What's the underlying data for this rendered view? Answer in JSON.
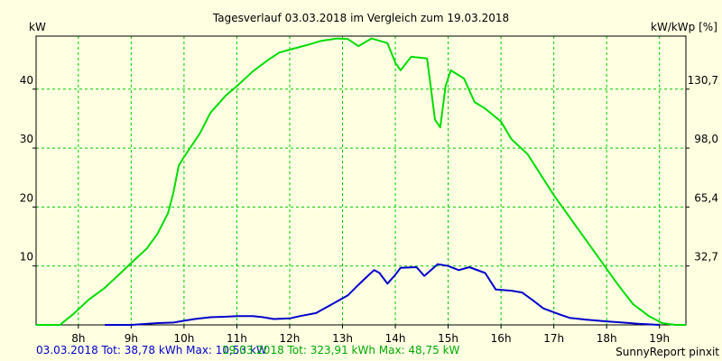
{
  "chart_data": {
    "type": "line",
    "title": "Tagesverlauf 03.03.2018 im Vergleich zum 19.03.2018",
    "ylabel_left": "kW",
    "ylabel_right": "kW/kWp [%]",
    "ylim": [
      0,
      49
    ],
    "xlim": [
      7.2,
      19.5
    ],
    "x_ticks": [
      8,
      9,
      10,
      11,
      12,
      13,
      14,
      15,
      16,
      17,
      18,
      19
    ],
    "x_tick_labels": [
      "8h",
      "9h",
      "10h",
      "11h",
      "12h",
      "13h",
      "14h",
      "15h",
      "16h",
      "17h",
      "18h",
      "19h"
    ],
    "y_ticks_left": [
      10,
      20,
      30,
      40
    ],
    "y_tick_labels_left": [
      "10",
      "20",
      "30",
      "40"
    ],
    "y_ticks_right": [
      10,
      20,
      30,
      40
    ],
    "y_tick_labels_right": [
      "32,7",
      "65,4",
      "98,0",
      "130,7"
    ],
    "grid": true,
    "series": [
      {
        "name": "03.03.2018",
        "color": "#0000cc",
        "points": [
          [
            8.5,
            0
          ],
          [
            9.0,
            0
          ],
          [
            9.5,
            0.3
          ],
          [
            9.8,
            0.4
          ],
          [
            10.0,
            0.7
          ],
          [
            10.2,
            1.0
          ],
          [
            10.5,
            1.3
          ],
          [
            10.8,
            1.4
          ],
          [
            11.0,
            1.5
          ],
          [
            11.3,
            1.5
          ],
          [
            11.5,
            1.3
          ],
          [
            11.7,
            1.0
          ],
          [
            12.0,
            1.1
          ],
          [
            12.2,
            1.5
          ],
          [
            12.5,
            2.0
          ],
          [
            12.8,
            3.5
          ],
          [
            13.1,
            5.0
          ],
          [
            13.3,
            6.8
          ],
          [
            13.5,
            8.5
          ],
          [
            13.6,
            9.3
          ],
          [
            13.7,
            8.8
          ],
          [
            13.85,
            7.0
          ],
          [
            14.0,
            8.5
          ],
          [
            14.1,
            9.7
          ],
          [
            14.4,
            9.8
          ],
          [
            14.55,
            8.3
          ],
          [
            14.8,
            10.3
          ],
          [
            15.0,
            10.0
          ],
          [
            15.2,
            9.3
          ],
          [
            15.4,
            9.8
          ],
          [
            15.7,
            8.8
          ],
          [
            15.9,
            6.0
          ],
          [
            16.2,
            5.8
          ],
          [
            16.4,
            5.5
          ],
          [
            16.6,
            4.2
          ],
          [
            16.8,
            2.8
          ],
          [
            17.1,
            1.8
          ],
          [
            17.3,
            1.2
          ],
          [
            17.6,
            0.9
          ],
          [
            18.0,
            0.6
          ],
          [
            18.3,
            0.4
          ],
          [
            18.6,
            0.2
          ],
          [
            19.0,
            0
          ]
        ]
      },
      {
        "name": "19.03.2018",
        "color": "#00dd00",
        "points": [
          [
            7.2,
            0
          ],
          [
            7.65,
            0
          ],
          [
            7.9,
            1.8
          ],
          [
            8.2,
            4.3
          ],
          [
            8.5,
            6.3
          ],
          [
            8.8,
            8.8
          ],
          [
            9.0,
            10.5
          ],
          [
            9.3,
            13.0
          ],
          [
            9.5,
            15.5
          ],
          [
            9.7,
            19.0
          ],
          [
            9.8,
            22.5
          ],
          [
            9.9,
            27.0
          ],
          [
            10.0,
            28.5
          ],
          [
            10.3,
            32.5
          ],
          [
            10.5,
            36.0
          ],
          [
            10.8,
            39.0
          ],
          [
            11.0,
            40.5
          ],
          [
            11.3,
            43.0
          ],
          [
            11.6,
            45.0
          ],
          [
            11.8,
            46.2
          ],
          [
            12.0,
            46.7
          ],
          [
            12.3,
            47.4
          ],
          [
            12.6,
            48.2
          ],
          [
            12.9,
            48.6
          ],
          [
            13.1,
            48.5
          ],
          [
            13.3,
            47.3
          ],
          [
            13.55,
            48.6
          ],
          [
            13.7,
            48.2
          ],
          [
            13.85,
            47.8
          ],
          [
            14.0,
            44.5
          ],
          [
            14.1,
            43.2
          ],
          [
            14.3,
            45.5
          ],
          [
            14.6,
            45.2
          ],
          [
            14.75,
            34.8
          ],
          [
            14.85,
            33.5
          ],
          [
            14.95,
            40.5
          ],
          [
            15.05,
            43.2
          ],
          [
            15.3,
            41.8
          ],
          [
            15.5,
            37.8
          ],
          [
            15.7,
            36.7
          ],
          [
            16.0,
            34.5
          ],
          [
            16.2,
            31.5
          ],
          [
            16.5,
            29.0
          ],
          [
            17.0,
            22.0
          ],
          [
            17.4,
            17.0
          ],
          [
            17.8,
            12.0
          ],
          [
            18.2,
            7.0
          ],
          [
            18.5,
            3.5
          ],
          [
            18.8,
            1.5
          ],
          [
            19.05,
            0.3
          ],
          [
            19.3,
            0
          ],
          [
            19.5,
            0
          ]
        ]
      }
    ],
    "footer": {
      "series1_summary": "03.03.2018 Tot: 38,78 kWh Max: 10,53 kW",
      "series2_summary": "19.03.2018 Tot: 323,91 kWh Max: 48,75 kW",
      "brand": "SunnyReport pinxit"
    }
  },
  "colors": {
    "background": "#ffffe1",
    "grid": "#00cc00",
    "axis": "#000000",
    "series1": "#0000cc",
    "series2": "#00dd00"
  }
}
